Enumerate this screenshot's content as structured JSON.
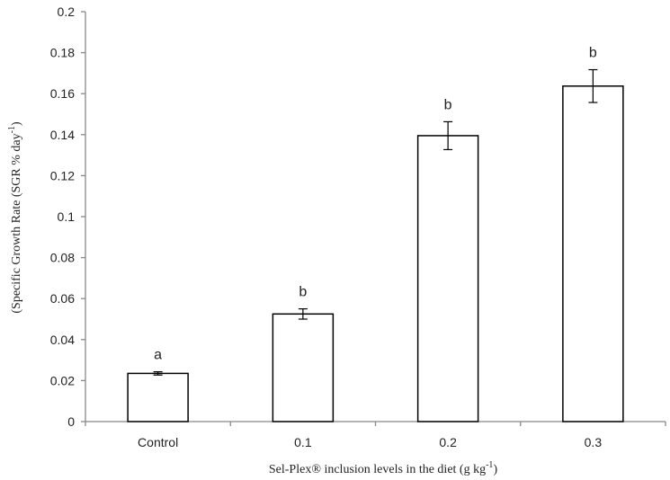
{
  "chart_data": {
    "type": "bar",
    "categories": [
      "Control",
      "0.1",
      "0.2",
      "0.3"
    ],
    "values": [
      0.0235,
      0.0525,
      0.1395,
      0.1637
    ],
    "errors": [
      0.0008,
      0.0025,
      0.0068,
      0.008
    ],
    "significance": [
      "a",
      "b",
      "b",
      "b"
    ],
    "ylim": [
      0,
      0.2
    ],
    "yticks": [
      "0",
      "0.02",
      "0.04",
      "0.06",
      "0.08",
      "0.1",
      "0.12",
      "0.14",
      "0.16",
      "0.18",
      "0.2"
    ],
    "xlabel_main": "Sel-Plex®  inclusion levels in the diet (g kg",
    "xlabel_sup": "-1",
    "xlabel_end": ")",
    "ylabel_main": "(Specific Growth Rate (SGR % day",
    "ylabel_sup": "-1",
    "ylabel_end": ")",
    "grid": false,
    "colors": {
      "bar_fill": "#ffffff",
      "bar_stroke": "#000000",
      "axis": "#888888"
    }
  }
}
